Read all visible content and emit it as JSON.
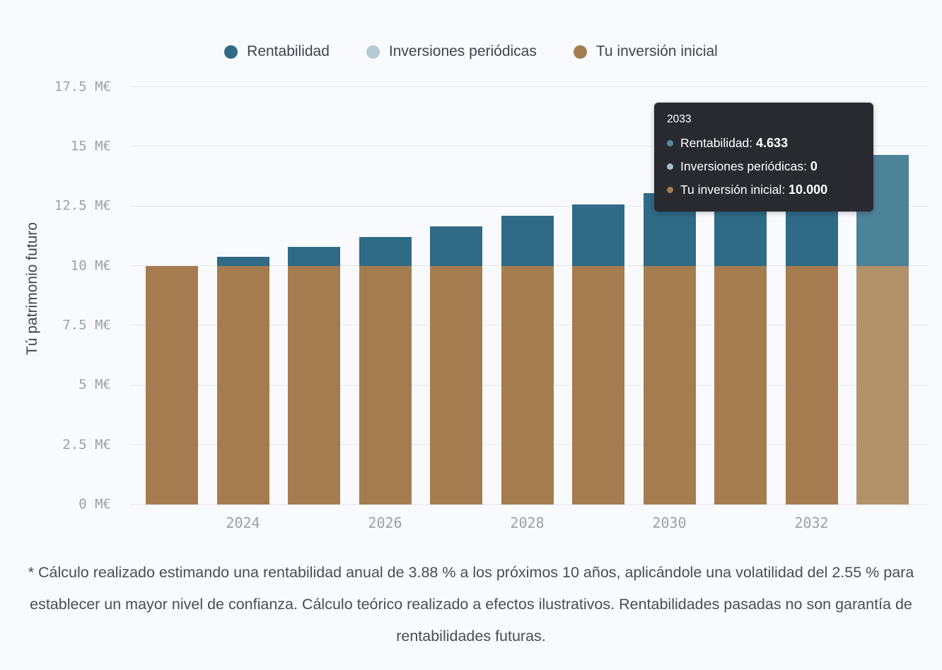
{
  "legend": {
    "items": [
      {
        "id": "rentabilidad",
        "label": "Rentabilidad",
        "color": "#2f6a86"
      },
      {
        "id": "inversiones-periodicas",
        "label": "Inversiones periódicas",
        "color": "#b4cbd3"
      },
      {
        "id": "tu-inversion-inicial",
        "label": "Tu inversión inicial",
        "color": "#a57c50"
      }
    ]
  },
  "chart_data": {
    "type": "bar",
    "stacked": true,
    "title": "",
    "xlabel": "",
    "ylabel": "Tú patrimonio futuro",
    "ylim": [
      0,
      17.5
    ],
    "grid": true,
    "legend_position": "top-center",
    "unit_note": "axis shows value/1000 labelled as M€ (10.000 -> 10 M€)",
    "categories": [
      2023,
      2024,
      2025,
      2026,
      2027,
      2028,
      2029,
      2030,
      2031,
      2032,
      2033
    ],
    "xticks": [
      "2024",
      "2026",
      "2028",
      "2030",
      "2032"
    ],
    "yticks": [
      {
        "value": 0,
        "label": "0 M€"
      },
      {
        "value": 2.5,
        "label": "2.5 M€"
      },
      {
        "value": 5,
        "label": "5 M€"
      },
      {
        "value": 7.5,
        "label": "7.5 M€"
      },
      {
        "value": 10,
        "label": "10 M€"
      },
      {
        "value": 12.5,
        "label": "12.5 M€"
      },
      {
        "value": 15,
        "label": "15 M€"
      },
      {
        "value": 17.5,
        "label": "17.5 M€"
      }
    ],
    "highlighted_index": 10,
    "series": [
      {
        "name": "Tu inversión inicial",
        "id": "tu-inversion-inicial",
        "color": "#a57c50",
        "hover_color": "#b2926b",
        "values": [
          10,
          10,
          10,
          10,
          10,
          10,
          10,
          10,
          10,
          10,
          10
        ]
      },
      {
        "name": "Inversiones periódicas",
        "id": "inversiones-periodicas",
        "color": "#b4cbd3",
        "hover_color": "#c6d8de",
        "values": [
          0,
          0,
          0,
          0,
          0,
          0,
          0,
          0,
          0,
          0,
          0
        ]
      },
      {
        "name": "Rentabilidad",
        "id": "rentabilidad",
        "color": "#2f6a86",
        "hover_color": "#4d8399",
        "values": [
          0,
          0.388,
          0.791,
          1.21,
          1.645,
          2.096,
          2.566,
          3.053,
          3.56,
          4.086,
          4.633
        ]
      }
    ]
  },
  "tooltip": {
    "title": "2033",
    "rows": [
      {
        "id": "rentabilidad",
        "label": "Rentabilidad",
        "value": "4.633",
        "dot_color": "#5b87a0"
      },
      {
        "id": "inversiones-periodicas",
        "label": "Inversiones periódicas",
        "value": "0",
        "dot_color": "#a3bfca"
      },
      {
        "id": "tu-inversion-inicial",
        "label": "Tu inversión inicial",
        "value": "10.000",
        "dot_color": "#a57d52"
      }
    ]
  },
  "footnote": "* Cálculo realizado estimando una rentabilidad anual de 3.88 % a los próximos 10 años, aplicándole una volatilidad del 2.55 % para establecer un mayor nivel de confianza. Cálculo teórico realizado a efectos ilustrativos. Rentabilidades pasadas no son garantía de rentabilidades futuras."
}
